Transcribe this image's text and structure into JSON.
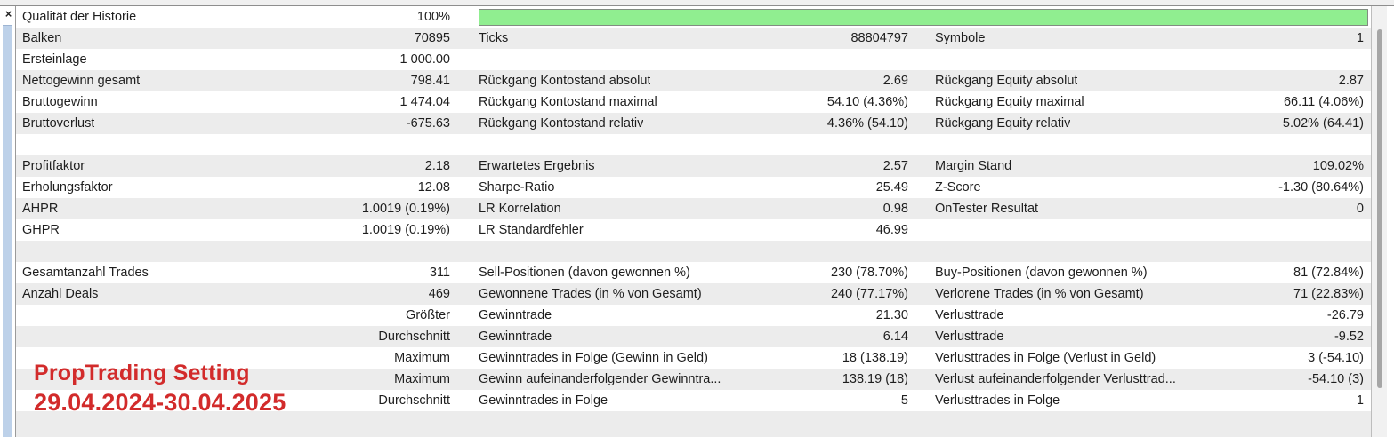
{
  "panel": {
    "close_label": "×"
  },
  "report": {
    "progress": {
      "name": "Qualität der Historie",
      "value_pct": 100,
      "bar_color": "#90ee90"
    },
    "rows": [
      [
        "Qualität der Historie",
        "100%",
        "",
        "",
        "",
        ""
      ],
      [
        "Balken",
        "70895",
        "Ticks",
        "88804797",
        "Symbole",
        "1"
      ],
      [
        "Ersteinlage",
        "1 000.00",
        "",
        "",
        "",
        ""
      ],
      [
        "Nettogewinn gesamt",
        "798.41",
        "Rückgang Kontostand absolut",
        "2.69",
        "Rückgang Equity absolut",
        "2.87"
      ],
      [
        "Bruttogewinn",
        "1 474.04",
        "Rückgang Kontostand maximal",
        "54.10 (4.36%)",
        "Rückgang Equity maximal",
        "66.11 (4.06%)"
      ],
      [
        "Bruttoverlust",
        "-675.63",
        "Rückgang Kontostand relativ",
        "4.36% (54.10)",
        "Rückgang Equity relativ",
        "5.02% (64.41)"
      ],
      [
        "",
        "",
        "",
        "",
        "",
        ""
      ],
      [
        "Profitfaktor",
        "2.18",
        "Erwartetes Ergebnis",
        "2.57",
        "Margin Stand",
        "109.02%"
      ],
      [
        "Erholungsfaktor",
        "12.08",
        "Sharpe-Ratio",
        "25.49",
        "Z-Score",
        "-1.30 (80.64%)"
      ],
      [
        "AHPR",
        "1.0019 (0.19%)",
        "LR Korrelation",
        "0.98",
        "OnTester Resultat",
        "0"
      ],
      [
        "GHPR",
        "1.0019 (0.19%)",
        "LR Standardfehler",
        "46.99",
        "",
        ""
      ],
      [
        "",
        "",
        "",
        "",
        "",
        ""
      ],
      [
        "Gesamtanzahl Trades",
        "311",
        "Sell-Positionen (davon gewonnen %)",
        "230 (78.70%)",
        "Buy-Positionen (davon gewonnen %)",
        "81 (72.84%)"
      ],
      [
        "Anzahl Deals",
        "469",
        "Gewonnene Trades (in % von Gesamt)",
        "240 (77.17%)",
        "Verlorene Trades (in % von Gesamt)",
        "71 (22.83%)"
      ],
      [
        "",
        "Größter",
        "Gewinntrade",
        "21.30",
        "Verlusttrade",
        "-26.79"
      ],
      [
        "",
        "Durchschnitt",
        "Gewinntrade",
        "6.14",
        "Verlusttrade",
        "-9.52"
      ],
      [
        "",
        "Maximum",
        "Gewinntrades in Folge (Gewinn in Geld)",
        "18 (138.19)",
        "Verlusttrades in Folge (Verlust in Geld)",
        "3 (-54.10)"
      ],
      [
        "",
        "Maximum",
        "Gewinn aufeinanderfolgender Gewinntra...",
        "138.19 (18)",
        "Verlust aufeinanderfolgender Verlusttrad...",
        "-54.10 (3)"
      ],
      [
        "",
        "Durchschnitt",
        "Gewinntrades in Folge",
        "5",
        "Verlusttrades in Folge",
        "1"
      ],
      [
        "",
        "",
        "",
        "",
        "",
        ""
      ]
    ]
  },
  "overlay": {
    "line1": "PropTrading Setting",
    "line2": "29.04.2024-30.04.2025",
    "color": "#d22b2b"
  },
  "colors": {
    "stripe": "#ececec",
    "edge_strip": "#bdd1e9",
    "progress_green": "#90ee90"
  }
}
